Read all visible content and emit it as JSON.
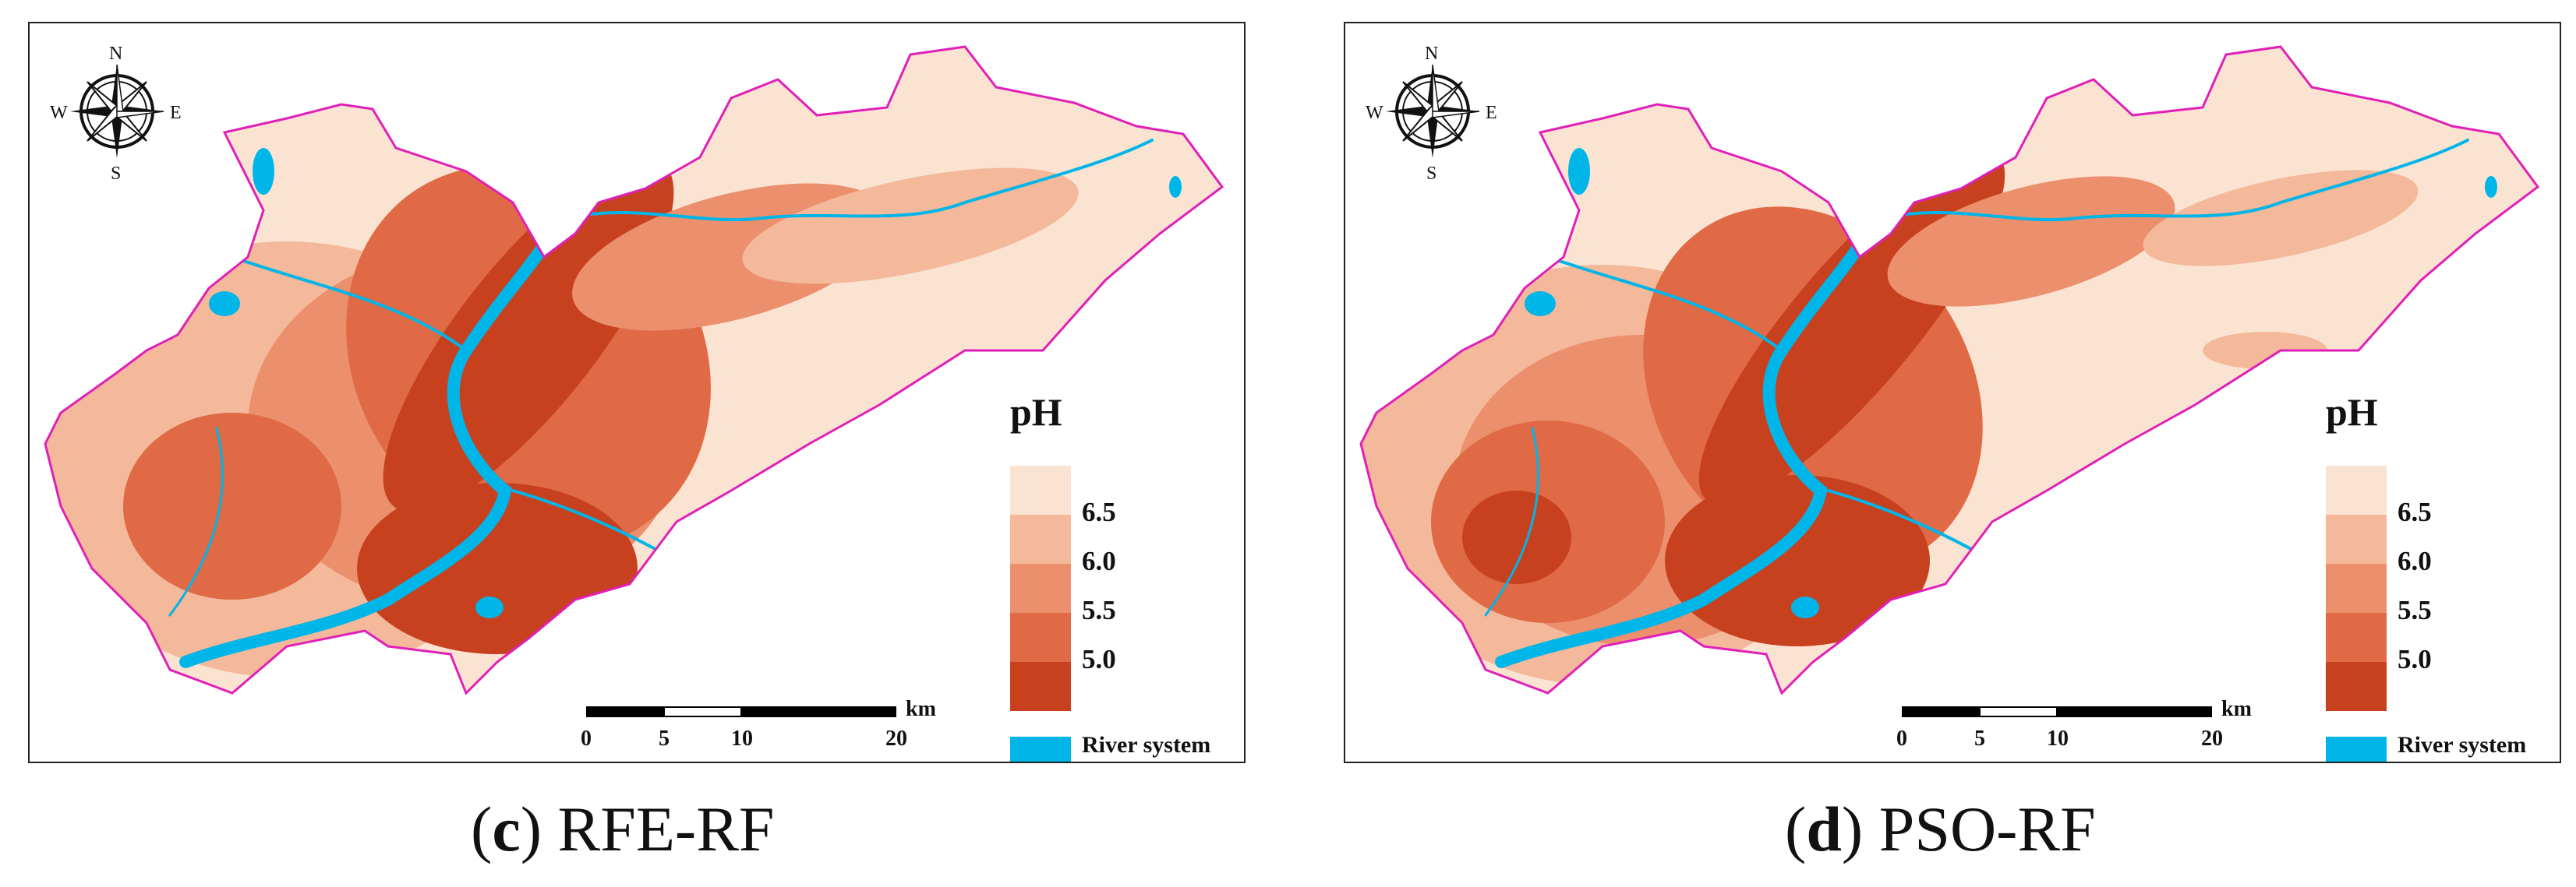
{
  "panels": [
    {
      "caption_letter": "c",
      "caption_method": "RFE-RF",
      "compass": {
        "n": "N",
        "s": "S",
        "w": "W",
        "e": "E"
      },
      "legend_title": "pH",
      "legend_labels": [
        "6.5",
        "6.0",
        "5.5",
        "5.0"
      ],
      "river_label": "River system",
      "scale_unit": "km",
      "scale_ticks": [
        "0",
        "5",
        "10",
        "20"
      ]
    },
    {
      "caption_letter": "d",
      "caption_method": "PSO-RF",
      "compass": {
        "n": "N",
        "s": "S",
        "w": "W",
        "e": "E"
      },
      "legend_title": "pH",
      "legend_labels": [
        "6.5",
        "6.0",
        "5.5",
        "5.0"
      ],
      "river_label": "River system",
      "scale_unit": "km",
      "scale_ticks": [
        "0",
        "5",
        "10",
        "20"
      ]
    }
  ],
  "colors": {
    "ph_classes": [
      "#fbe3d2",
      "#f4b89a",
      "#eb8f6d",
      "#df6a45",
      "#c8411f"
    ],
    "river": "#00b5e8",
    "boundary": "#e020b8"
  }
}
